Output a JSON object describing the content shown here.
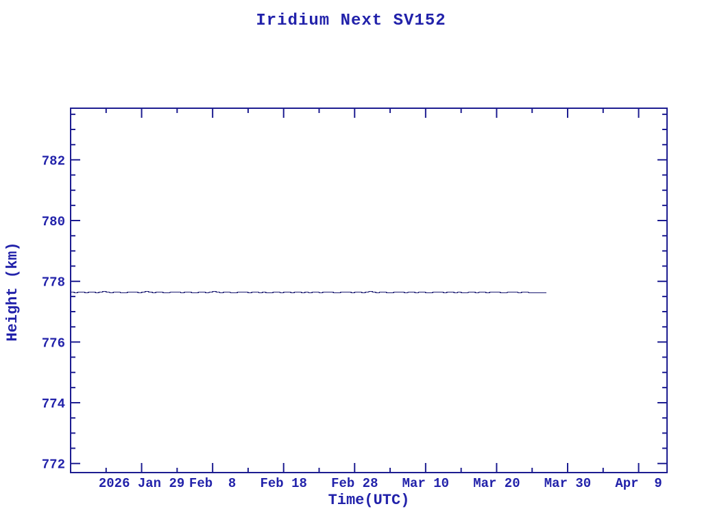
{
  "title": "Iridium Next SV152",
  "colors": {
    "text": "#2222aa",
    "axis": "#1c1c90",
    "line": "#191970",
    "background": "#ffffff"
  },
  "chart_data": {
    "type": "line",
    "title": "Iridium Next SV152",
    "xlabel": "Time(UTC)",
    "ylabel": "Height (km)",
    "grid": false,
    "legend": null,
    "x_unit": "days since 2026 Jan 19",
    "xlim": [
      0,
      84
    ],
    "ylim": [
      771.7,
      783.7
    ],
    "x_major_ticks": [
      {
        "day": 10,
        "label": "2026 Jan 29"
      },
      {
        "day": 20,
        "label": "Feb  8"
      },
      {
        "day": 30,
        "label": "Feb 18"
      },
      {
        "day": 40,
        "label": "Feb 28"
      },
      {
        "day": 50,
        "label": "Mar 10"
      },
      {
        "day": 60,
        "label": "Mar 20"
      },
      {
        "day": 70,
        "label": "Mar 30"
      },
      {
        "day": 80,
        "label": "Apr  9"
      }
    ],
    "x_minor_tick_days": [
      5,
      15,
      25,
      35,
      45,
      55,
      65,
      75
    ],
    "y_major_ticks": [
      {
        "value": 772,
        "label": "772"
      },
      {
        "value": 774,
        "label": "774"
      },
      {
        "value": 776,
        "label": "776"
      },
      {
        "value": 778,
        "label": "778"
      },
      {
        "value": 780,
        "label": "780"
      },
      {
        "value": 782,
        "label": "782"
      }
    ],
    "y_minor_step": 0.5,
    "series": [
      {
        "name": "height",
        "x_start_day": 0,
        "x_step_days": 0.5,
        "mean_km": 777.65,
        "values": [
          777.65,
          777.64,
          777.66,
          777.65,
          777.63,
          777.65,
          777.66,
          777.64,
          777.65,
          777.67,
          777.65,
          777.64,
          777.66,
          777.65,
          777.64,
          777.63,
          777.65,
          777.66,
          777.65,
          777.64,
          777.66,
          777.67,
          777.65,
          777.64,
          777.65,
          777.66,
          777.64,
          777.63,
          777.65,
          777.66,
          777.65,
          777.64,
          777.66,
          777.65,
          777.63,
          777.64,
          777.66,
          777.65,
          777.64,
          777.65,
          777.67,
          777.66,
          777.64,
          777.65,
          777.66,
          777.64,
          777.63,
          777.65,
          777.66,
          777.65,
          777.64,
          777.65,
          777.66,
          777.64,
          777.65,
          777.63,
          777.64,
          777.66,
          777.65,
          777.64,
          777.66,
          777.65,
          777.64,
          777.65,
          777.66,
          777.64,
          777.65,
          777.63,
          777.65,
          777.66,
          777.64,
          777.65,
          777.66,
          777.65,
          777.64,
          777.63,
          777.65,
          777.66,
          777.65,
          777.64,
          777.65,
          777.66,
          777.64,
          777.65,
          777.67,
          777.65,
          777.64,
          777.66,
          777.65,
          777.64,
          777.63,
          777.65,
          777.66,
          777.65,
          777.64,
          777.66,
          777.65,
          777.64,
          777.65,
          777.66,
          777.64,
          777.63,
          777.65,
          777.66,
          777.65,
          777.64,
          777.66,
          777.65,
          777.64,
          777.65,
          777.63,
          777.64,
          777.66,
          777.65,
          777.64,
          777.65,
          777.66,
          777.64,
          777.65,
          777.66,
          777.65,
          777.64,
          777.63,
          777.65,
          777.66,
          777.65,
          777.64,
          777.65,
          777.66,
          777.64,
          777.64,
          777.64,
          777.64,
          777.64,
          777.64
        ]
      }
    ]
  }
}
